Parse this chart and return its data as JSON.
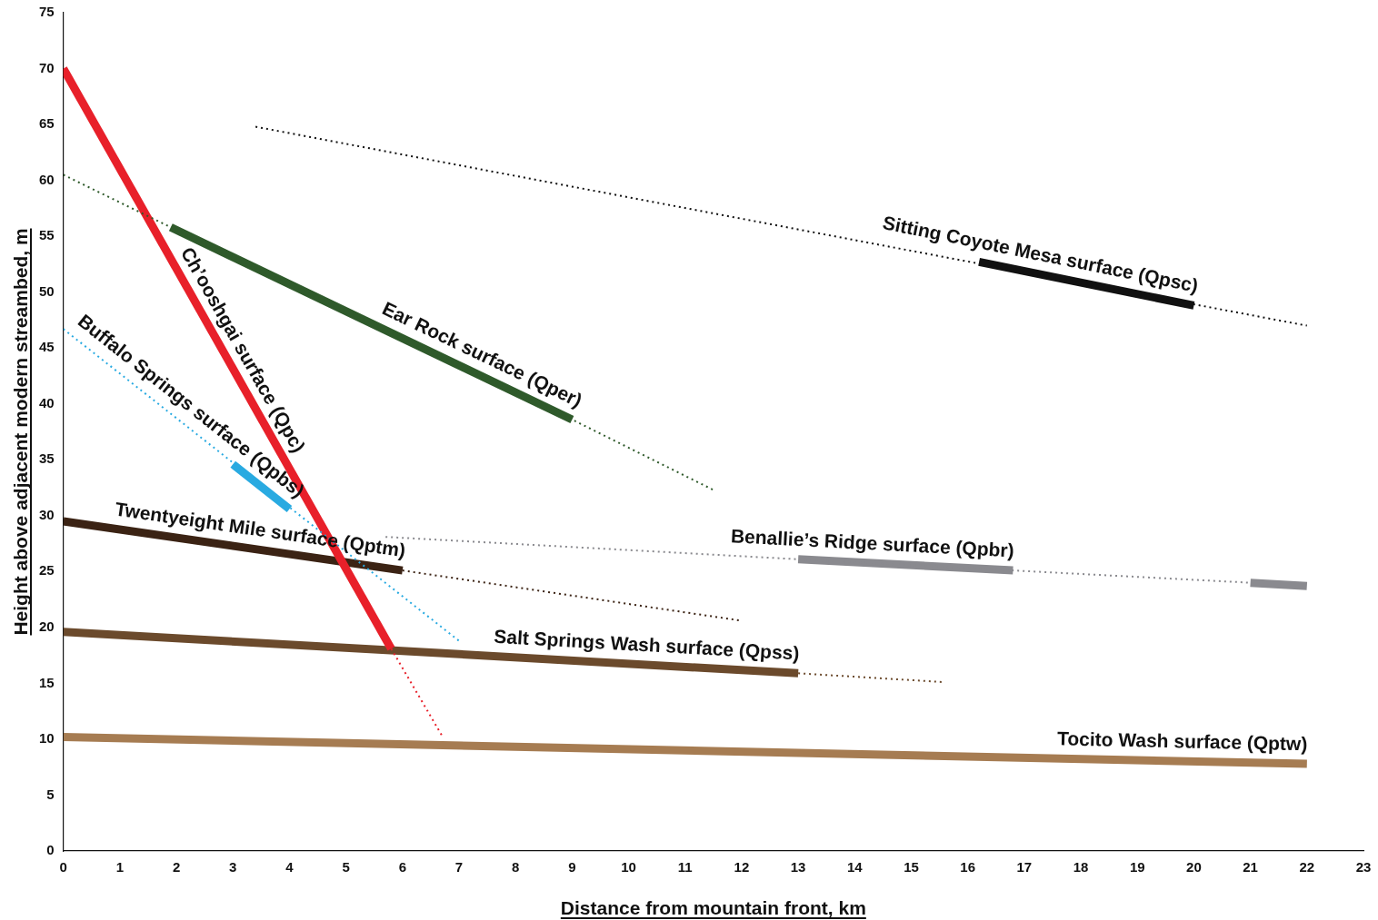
{
  "chart_data": {
    "type": "line",
    "xlabel": "Distance from mountain front, km",
    "ylabel": "Height above adjacent modern streambed, m",
    "xlim": [
      0,
      23
    ],
    "xticks": [
      0,
      1,
      2,
      3,
      4,
      5,
      6,
      7,
      8,
      9,
      10,
      11,
      12,
      13,
      14,
      15,
      16,
      17,
      18,
      19,
      20,
      21,
      22,
      23
    ],
    "ylim": [
      0,
      75
    ],
    "yticks": [
      0,
      5,
      10,
      15,
      20,
      25,
      30,
      35,
      40,
      45,
      50,
      55,
      60,
      65,
      70,
      75
    ],
    "grid": false,
    "legend": false,
    "marker": "none",
    "series": [
      {
        "color": "#111111",
        "line_style": "dotted",
        "x": [
          3.4,
          22
        ],
        "values": [
          64.8,
          47.0
        ]
      },
      {
        "name": "Sitting Coyote Mesa surface (Qpsc)",
        "color": "#111111",
        "line_style": "solid",
        "x": [
          16.2,
          20
        ],
        "values": [
          52.7,
          48.8
        ]
      },
      {
        "color": "#2f5a2b",
        "line_style": "dotted",
        "x": [
          0,
          1.9,
          9,
          11.5
        ],
        "values": [
          60.5,
          55.8,
          38.6,
          32.3
        ]
      },
      {
        "name": "Ear Rock surface (Qper)",
        "color": "#2f5a2b",
        "line_style": "solid",
        "x": [
          1.9,
          9
        ],
        "values": [
          55.8,
          38.6
        ]
      },
      {
        "color": "#29aae1",
        "line_style": "dotted",
        "x": [
          0,
          7
        ],
        "values": [
          46.7,
          18.8
        ]
      },
      {
        "name": "Buffalo Springs surface (Qpbs)",
        "color": "#29aae1",
        "line_style": "solid",
        "x": [
          3,
          4
        ],
        "values": [
          34.6,
          30.6
        ]
      },
      {
        "color": "#e8202a",
        "line_style": "dotted",
        "x": [
          5.8,
          6.7
        ],
        "values": [
          18.1,
          10.3
        ]
      },
      {
        "name": "Ch’ooshgai surface (Qpc)",
        "color": "#e8202a",
        "line_style": "solid",
        "x": [
          0,
          5.8
        ],
        "values": [
          70,
          18.1
        ]
      },
      {
        "color": "#8a8a8f",
        "line_style": "dotted",
        "x": [
          5.7,
          13,
          16.8,
          21
        ],
        "values": [
          28.1,
          26.1,
          25.1,
          24.0
        ]
      },
      {
        "name": "Benallie’s Ridge surface (Qpbr)",
        "color": "#8a8a8f",
        "line_style": "solid",
        "x": [
          13,
          16.8
        ],
        "values": [
          26.1,
          25.1
        ]
      },
      {
        "color": "#8a8a8f",
        "line_style": "solid",
        "x": [
          21,
          22
        ],
        "values": [
          24.0,
          23.7
        ]
      },
      {
        "color": "#3b2314",
        "line_style": "dotted",
        "x": [
          6,
          12
        ],
        "values": [
          25.1,
          20.6
        ]
      },
      {
        "name": "Twentyeight Mile surface (Qptm)",
        "color": "#3b2314",
        "line_style": "solid",
        "x": [
          0,
          6
        ],
        "values": [
          29.5,
          25.1
        ]
      },
      {
        "color": "#6b4a2c",
        "line_style": "dotted",
        "x": [
          13,
          15.6
        ],
        "values": [
          15.9,
          15.1
        ]
      },
      {
        "name": "Salt Springs Wash surface (Qpss)",
        "color": "#6b4a2c",
        "line_style": "solid",
        "x": [
          0,
          13
        ],
        "values": [
          19.6,
          15.9
        ]
      },
      {
        "name": "Tocito Wash surface (Qptw)",
        "color": "#a67c52",
        "line_style": "solid",
        "x": [
          0,
          22
        ],
        "values": [
          10.2,
          7.8
        ]
      }
    ]
  }
}
